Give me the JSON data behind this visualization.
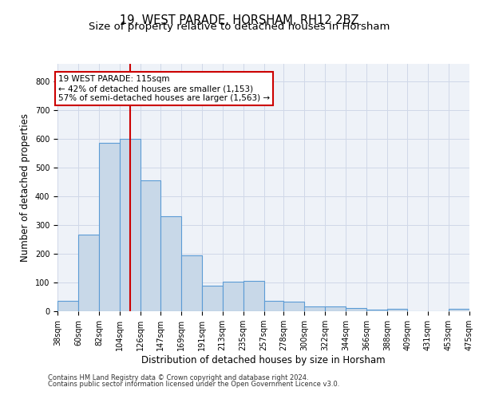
{
  "title1": "19, WEST PARADE, HORSHAM, RH12 2BZ",
  "title2": "Size of property relative to detached houses in Horsham",
  "xlabel": "Distribution of detached houses by size in Horsham",
  "ylabel": "Number of detached properties",
  "footnote1": "Contains HM Land Registry data © Crown copyright and database right 2024.",
  "footnote2": "Contains public sector information licensed under the Open Government Licence v3.0.",
  "annotation_line1": "19 WEST PARADE: 115sqm",
  "annotation_line2": "← 42% of detached houses are smaller (1,153)",
  "annotation_line3": "57% of semi-detached houses are larger (1,563) →",
  "bar_color": "#c8d8e8",
  "bar_edge_color": "#5b9bd5",
  "vline_color": "#cc0000",
  "vline_x": 115,
  "bin_edges": [
    38,
    60,
    82,
    104,
    126,
    147,
    169,
    191,
    213,
    235,
    257,
    278,
    300,
    322,
    344,
    366,
    388,
    409,
    431,
    453,
    475
  ],
  "bar_heights": [
    35,
    265,
    585,
    600,
    455,
    330,
    195,
    90,
    102,
    105,
    35,
    32,
    18,
    17,
    12,
    5,
    7,
    0,
    0,
    8
  ],
  "ylim": [
    0,
    860
  ],
  "yticks": [
    0,
    100,
    200,
    300,
    400,
    500,
    600,
    700,
    800
  ],
  "background_color": "#eef2f8",
  "grid_color": "#d0d8e8",
  "title_fontsize": 10.5,
  "subtitle_fontsize": 9.5,
  "ylabel_fontsize": 8.5,
  "xlabel_fontsize": 8.5,
  "tick_fontsize": 7,
  "footnote_fontsize": 6,
  "annot_fontsize": 7.5
}
